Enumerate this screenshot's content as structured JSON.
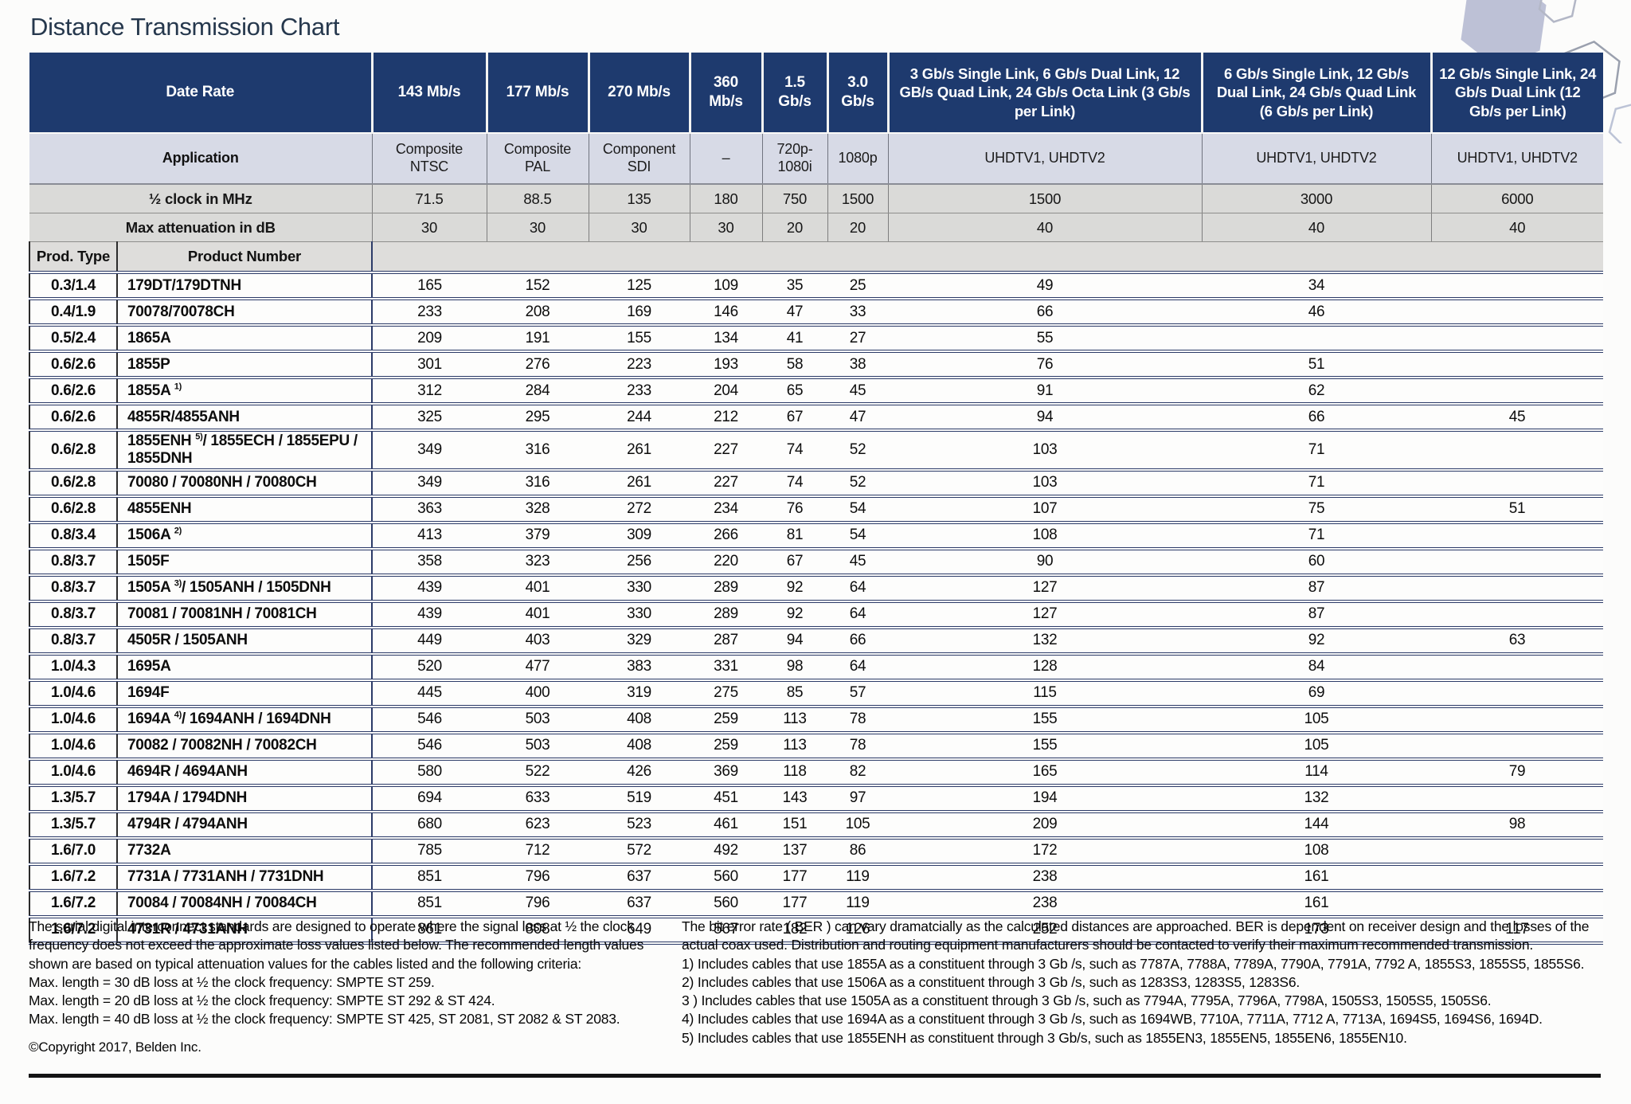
{
  "page": {
    "title": "Distance Transmission Chart"
  },
  "colors": {
    "header_navy": "#1e3a6e",
    "application_row_bg": "#d7dae6",
    "metric_row_bg": "#dadad8",
    "row_divider_navy": "#2c3b68",
    "hexagon_fill": "#b7bcd2"
  },
  "table": {
    "corner_labels": {
      "data_rate": "Date Rate",
      "application": "Application",
      "half_clock": "½ clock in MHz",
      "max_attenuation": "Max attenuation in dB",
      "prod_type": "Prod. Type",
      "product_number": "Product Number"
    },
    "columns": [
      {
        "data_rate": "143 Mb/s",
        "application": "Composite NTSC",
        "half_clock": "71.5",
        "max_attenuation": "30"
      },
      {
        "data_rate": "177 Mb/s",
        "application": "Composite PAL",
        "half_clock": "88.5",
        "max_attenuation": "30"
      },
      {
        "data_rate": "270 Mb/s",
        "application": "Component SDI",
        "half_clock": "135",
        "max_attenuation": "30"
      },
      {
        "data_rate": "360 Mb/s",
        "application": "–",
        "half_clock": "180",
        "max_attenuation": "30"
      },
      {
        "data_rate": "1.5 Gb/s",
        "application": "720p- 1080i",
        "half_clock": "750",
        "max_attenuation": "20"
      },
      {
        "data_rate": "3.0 Gb/s",
        "application": "1080p",
        "half_clock": "1500",
        "max_attenuation": "20"
      },
      {
        "data_rate": "3 Gb/s Single Link, 6 Gb/s Dual Link, 12 GB/s Quad Link, 24 Gb/s Octa Link (3 Gb/s per Link)",
        "application": "UHDTV1, UHDTV2",
        "half_clock": "1500",
        "max_attenuation": "40"
      },
      {
        "data_rate": "6 Gb/s Single Link, 12 Gb/s Dual Link, 24 Gb/s Quad Link (6 Gb/s per Link)",
        "application": "UHDTV1, UHDTV2",
        "half_clock": "3000",
        "max_attenuation": "40"
      },
      {
        "data_rate": "12 Gb/s Single Link, 24 Gb/s Dual Link (12 Gb/s per Link)",
        "application": "UHDTV1, UHDTV2",
        "half_clock": "6000",
        "max_attenuation": "40"
      }
    ],
    "rows": [
      {
        "prod_type": "0.3/1.4",
        "product": "179DT/179DTNH",
        "values": [
          "165",
          "152",
          "125",
          "109",
          "35",
          "25",
          "49",
          "34",
          ""
        ]
      },
      {
        "prod_type": "0.4/1.9",
        "product": "70078/70078CH",
        "values": [
          "233",
          "208",
          "169",
          "146",
          "47",
          "33",
          "66",
          "46",
          ""
        ]
      },
      {
        "prod_type": "0.5/2.4",
        "product": "1865A",
        "values": [
          "209",
          "191",
          "155",
          "134",
          "41",
          "27",
          "55",
          "",
          ""
        ]
      },
      {
        "prod_type": "0.6/2.6",
        "product": "1855P",
        "values": [
          "301",
          "276",
          "223",
          "193",
          "58",
          "38",
          "76",
          "51",
          ""
        ]
      },
      {
        "prod_type": "0.6/2.6",
        "product": "1855A ^1)",
        "values": [
          "312",
          "284",
          "233",
          "204",
          "65",
          "45",
          "91",
          "62",
          ""
        ]
      },
      {
        "prod_type": "0.6/2.6",
        "product": "4855R/4855ANH",
        "values": [
          "325",
          "295",
          "244",
          "212",
          "67",
          "47",
          "94",
          "66",
          "45"
        ]
      },
      {
        "prod_type": "0.6/2.8",
        "product": "1855ENH ^5)/ 1855ECH / 1855EPU / 1855DNH",
        "values": [
          "349",
          "316",
          "261",
          "227",
          "74",
          "52",
          "103",
          "71",
          ""
        ]
      },
      {
        "prod_type": "0.6/2.8",
        "product": "70080 / 70080NH / 70080CH",
        "values": [
          "349",
          "316",
          "261",
          "227",
          "74",
          "52",
          "103",
          "71",
          ""
        ]
      },
      {
        "prod_type": "0.6/2.8",
        "product": "4855ENH",
        "values": [
          "363",
          "328",
          "272",
          "234",
          "76",
          "54",
          "107",
          "75",
          "51"
        ]
      },
      {
        "prod_type": "0.8/3.4",
        "product": "1506A ^2)",
        "values": [
          "413",
          "379",
          "309",
          "266",
          "81",
          "54",
          "108",
          "71",
          ""
        ]
      },
      {
        "prod_type": "0.8/3.7",
        "product": "1505F",
        "values": [
          "358",
          "323",
          "256",
          "220",
          "67",
          "45",
          "90",
          "60",
          ""
        ]
      },
      {
        "prod_type": "0.8/3.7",
        "product": "1505A ^3)/ 1505ANH / 1505DNH",
        "values": [
          "439",
          "401",
          "330",
          "289",
          "92",
          "64",
          "127",
          "87",
          ""
        ]
      },
      {
        "prod_type": "0.8/3.7",
        "product": "70081 / 70081NH / 70081CH",
        "values": [
          "439",
          "401",
          "330",
          "289",
          "92",
          "64",
          "127",
          "87",
          ""
        ]
      },
      {
        "prod_type": "0.8/3.7",
        "product": "4505R / 1505ANH",
        "values": [
          "449",
          "403",
          "329",
          "287",
          "94",
          "66",
          "132",
          "92",
          "63"
        ]
      },
      {
        "prod_type": "1.0/4.3",
        "product": "1695A",
        "values": [
          "520",
          "477",
          "383",
          "331",
          "98",
          "64",
          "128",
          "84",
          ""
        ]
      },
      {
        "prod_type": "1.0/4.6",
        "product": "1694F",
        "values": [
          "445",
          "400",
          "319",
          "275",
          "85",
          "57",
          "115",
          "69",
          ""
        ]
      },
      {
        "prod_type": "1.0/4.6",
        "product": "1694A ^4)/ 1694ANH / 1694DNH",
        "values": [
          "546",
          "503",
          "408",
          "259",
          "113",
          "78",
          "155",
          "105",
          ""
        ]
      },
      {
        "prod_type": "1.0/4.6",
        "product": "70082 / 70082NH / 70082CH",
        "values": [
          "546",
          "503",
          "408",
          "259",
          "113",
          "78",
          "155",
          "105",
          ""
        ]
      },
      {
        "prod_type": "1.0/4.6",
        "product": "4694R / 4694ANH",
        "values": [
          "580",
          "522",
          "426",
          "369",
          "118",
          "82",
          "165",
          "114",
          "79"
        ]
      },
      {
        "prod_type": "1.3/5.7",
        "product": "1794A / 1794DNH",
        "values": [
          "694",
          "633",
          "519",
          "451",
          "143",
          "97",
          "194",
          "132",
          ""
        ]
      },
      {
        "prod_type": "1.3/5.7",
        "product": "4794R / 4794ANH",
        "values": [
          "680",
          "623",
          "523",
          "461",
          "151",
          "105",
          "209",
          "144",
          "98"
        ]
      },
      {
        "prod_type": "1.6/7.0",
        "product": "7732A",
        "values": [
          "785",
          "712",
          "572",
          "492",
          "137",
          "86",
          "172",
          "108",
          ""
        ]
      },
      {
        "prod_type": "1.6/7.2",
        "product": "7731A / 7731ANH / 7731DNH",
        "values": [
          "851",
          "796",
          "637",
          "560",
          "177",
          "119",
          "238",
          "161",
          ""
        ]
      },
      {
        "prod_type": "1.6/7.2",
        "product": "70084 / 70084NH / 70084CH",
        "values": [
          "851",
          "796",
          "637",
          "560",
          "177",
          "119",
          "238",
          "161",
          ""
        ]
      },
      {
        "prod_type": "1.6/7.2",
        "product": "4731R / 4731ANH",
        "values": [
          "861",
          "808",
          "649",
          "567",
          "182",
          "126",
          "252",
          "173",
          "117"
        ]
      }
    ]
  },
  "footnotes_left": {
    "paragraph": "The serial digital interconnect standards are designed to operate where the signal loss at ½ the clock frequency does not exceed the approximate loss values listed below. The recommended length values shown are based on typical attenuation values for the cables listed and the following criteria:",
    "criteria": [
      "Max. length = 30 dB loss at ½ the clock frequency: SMPTE ST 259.",
      "Max. length = 20 dB loss at ½ the clock frequency: SMPTE ST 292 & ST 424.",
      "Max. length = 40 dB loss at ½ the clock frequency: SMPTE ST 425, ST 2081, ST 2082 & ST 2083."
    ],
    "copyright": "©Copyright 2017, Belden Inc."
  },
  "footnotes_right": {
    "paragraph": "The bit error rate ( BER ) can vary dramatcially as the calculated distances are approached. BER is dependent on receiver design and the losses of the actual coax used. Distribution and routing equipment manufacturers should be contacted to verify their maximum recommended transmission.",
    "notes": [
      "1) Includes cables that use 1855A as a constituent through 3 Gb /s, such as 7787A, 7788A, 7789A, 7790A, 7791A, 7792 A, 1855S3, 1855S5, 1855S6.",
      "2) Includes cables that use 1506A as a constituent through 3 Gb /s, such as 1283S3, 1283S5, 1283S6.",
      "3 ) Includes cables that use 1505A as a constituent through 3 Gb /s, such as 7794A, 7795A, 7796A, 7798A, 1505S3, 1505S5, 1505S6.",
      "4) Includes cables that use 1694A as a constituent through 3 Gb /s, such as 1694WB, 7710A, 7711A, 7712 A, 7713A, 1694S5, 1694S6, 1694D.",
      "5) Includes cables that use 1855ENH as constituent through 3 Gb/s, such as 1855EN3, 1855EN5, 1855EN6, 1855EN10."
    ]
  }
}
